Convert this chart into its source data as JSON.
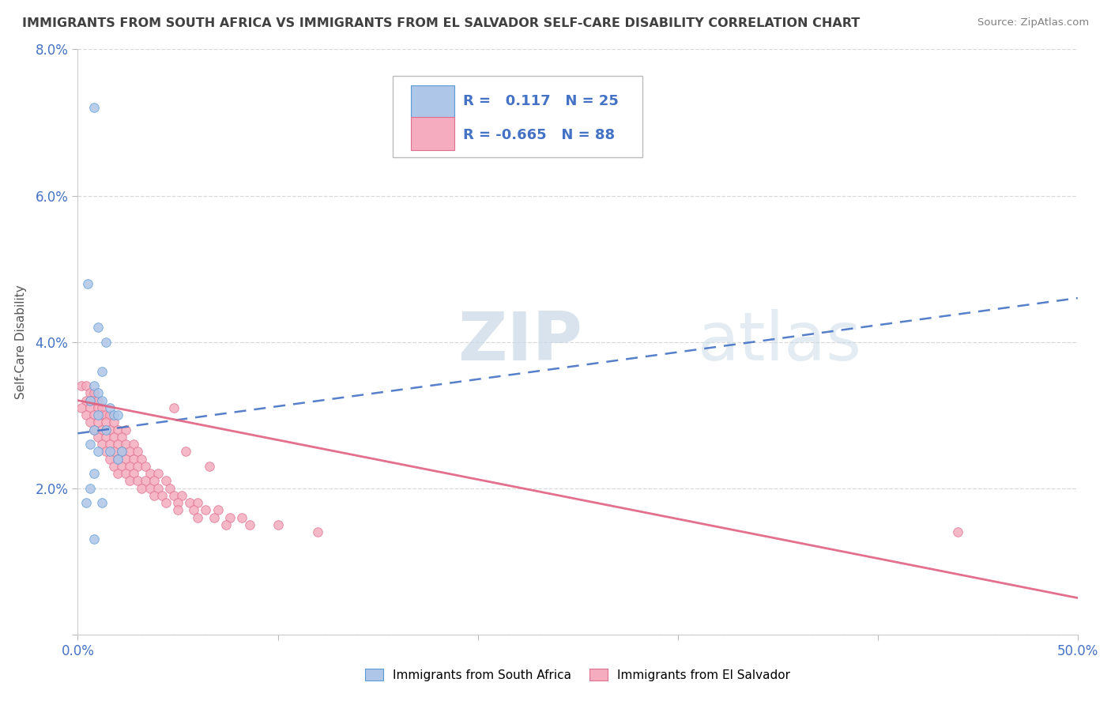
{
  "title": "IMMIGRANTS FROM SOUTH AFRICA VS IMMIGRANTS FROM EL SALVADOR SELF-CARE DISABILITY CORRELATION CHART",
  "source": "Source: ZipAtlas.com",
  "ylabel": "Self-Care Disability",
  "xlim": [
    0.0,
    0.5
  ],
  "ylim": [
    0.0,
    0.08
  ],
  "xticks": [
    0.0,
    0.1,
    0.2,
    0.3,
    0.4,
    0.5
  ],
  "yticks": [
    0.0,
    0.02,
    0.04,
    0.06,
    0.08
  ],
  "ytick_labels": [
    "",
    "2.0%",
    "4.0%",
    "6.0%",
    "8.0%"
  ],
  "xtick_labels": [
    "0.0%",
    "",
    "",
    "",
    "",
    "50.0%"
  ],
  "series1_color": "#aec6e8",
  "series1_edge": "#5b9bd5",
  "series1_line_color": "#4472c4",
  "series2_color": "#f4acbe",
  "series2_edge": "#e07090",
  "series2_line_color": "#e06080",
  "R1": 0.117,
  "N1": 25,
  "R2": -0.665,
  "N2": 88,
  "legend_label1": "Immigrants from South Africa",
  "legend_label2": "Immigrants from El Salvador",
  "watermark_zip": "ZIP",
  "watermark_atlas": "atlas",
  "background_color": "#ffffff",
  "grid_color": "#d0d0d0",
  "blue_text_color": "#4472c4",
  "title_color": "#404040",
  "source_color": "#808080",
  "series1_points": [
    [
      0.008,
      0.072
    ],
    [
      0.005,
      0.048
    ],
    [
      0.01,
      0.042
    ],
    [
      0.014,
      0.04
    ],
    [
      0.012,
      0.036
    ],
    [
      0.008,
      0.034
    ],
    [
      0.01,
      0.033
    ],
    [
      0.006,
      0.032
    ],
    [
      0.012,
      0.032
    ],
    [
      0.016,
      0.031
    ],
    [
      0.01,
      0.03
    ],
    [
      0.018,
      0.03
    ],
    [
      0.02,
      0.03
    ],
    [
      0.008,
      0.028
    ],
    [
      0.014,
      0.028
    ],
    [
      0.006,
      0.026
    ],
    [
      0.022,
      0.025
    ],
    [
      0.01,
      0.025
    ],
    [
      0.016,
      0.025
    ],
    [
      0.02,
      0.024
    ],
    [
      0.008,
      0.022
    ],
    [
      0.006,
      0.02
    ],
    [
      0.004,
      0.018
    ],
    [
      0.012,
      0.018
    ],
    [
      0.008,
      0.013
    ]
  ],
  "series2_points": [
    [
      0.002,
      0.034
    ],
    [
      0.004,
      0.034
    ],
    [
      0.006,
      0.033
    ],
    [
      0.008,
      0.033
    ],
    [
      0.004,
      0.032
    ],
    [
      0.006,
      0.032
    ],
    [
      0.008,
      0.032
    ],
    [
      0.01,
      0.032
    ],
    [
      0.002,
      0.031
    ],
    [
      0.006,
      0.031
    ],
    [
      0.01,
      0.031
    ],
    [
      0.012,
      0.031
    ],
    [
      0.004,
      0.03
    ],
    [
      0.008,
      0.03
    ],
    [
      0.012,
      0.03
    ],
    [
      0.014,
      0.03
    ],
    [
      0.016,
      0.03
    ],
    [
      0.006,
      0.029
    ],
    [
      0.01,
      0.029
    ],
    [
      0.014,
      0.029
    ],
    [
      0.018,
      0.029
    ],
    [
      0.008,
      0.028
    ],
    [
      0.012,
      0.028
    ],
    [
      0.016,
      0.028
    ],
    [
      0.02,
      0.028
    ],
    [
      0.024,
      0.028
    ],
    [
      0.01,
      0.027
    ],
    [
      0.014,
      0.027
    ],
    [
      0.018,
      0.027
    ],
    [
      0.022,
      0.027
    ],
    [
      0.012,
      0.026
    ],
    [
      0.016,
      0.026
    ],
    [
      0.02,
      0.026
    ],
    [
      0.024,
      0.026
    ],
    [
      0.028,
      0.026
    ],
    [
      0.014,
      0.025
    ],
    [
      0.018,
      0.025
    ],
    [
      0.022,
      0.025
    ],
    [
      0.026,
      0.025
    ],
    [
      0.03,
      0.025
    ],
    [
      0.016,
      0.024
    ],
    [
      0.02,
      0.024
    ],
    [
      0.024,
      0.024
    ],
    [
      0.028,
      0.024
    ],
    [
      0.032,
      0.024
    ],
    [
      0.018,
      0.023
    ],
    [
      0.022,
      0.023
    ],
    [
      0.026,
      0.023
    ],
    [
      0.03,
      0.023
    ],
    [
      0.034,
      0.023
    ],
    [
      0.02,
      0.022
    ],
    [
      0.024,
      0.022
    ],
    [
      0.028,
      0.022
    ],
    [
      0.036,
      0.022
    ],
    [
      0.04,
      0.022
    ],
    [
      0.026,
      0.021
    ],
    [
      0.03,
      0.021
    ],
    [
      0.034,
      0.021
    ],
    [
      0.038,
      0.021
    ],
    [
      0.044,
      0.021
    ],
    [
      0.032,
      0.02
    ],
    [
      0.036,
      0.02
    ],
    [
      0.04,
      0.02
    ],
    [
      0.046,
      0.02
    ],
    [
      0.038,
      0.019
    ],
    [
      0.042,
      0.019
    ],
    [
      0.048,
      0.019
    ],
    [
      0.052,
      0.019
    ],
    [
      0.044,
      0.018
    ],
    [
      0.05,
      0.018
    ],
    [
      0.056,
      0.018
    ],
    [
      0.06,
      0.018
    ],
    [
      0.05,
      0.017
    ],
    [
      0.058,
      0.017
    ],
    [
      0.064,
      0.017
    ],
    [
      0.07,
      0.017
    ],
    [
      0.06,
      0.016
    ],
    [
      0.068,
      0.016
    ],
    [
      0.076,
      0.016
    ],
    [
      0.082,
      0.016
    ],
    [
      0.074,
      0.015
    ],
    [
      0.086,
      0.015
    ],
    [
      0.1,
      0.015
    ],
    [
      0.12,
      0.014
    ],
    [
      0.44,
      0.014
    ],
    [
      0.048,
      0.031
    ],
    [
      0.054,
      0.025
    ],
    [
      0.066,
      0.023
    ]
  ],
  "line1_x": [
    0.0,
    0.5
  ],
  "line1_y": [
    0.0275,
    0.046
  ],
  "line2_x": [
    0.0,
    0.5
  ],
  "line2_y": [
    0.032,
    0.005
  ]
}
